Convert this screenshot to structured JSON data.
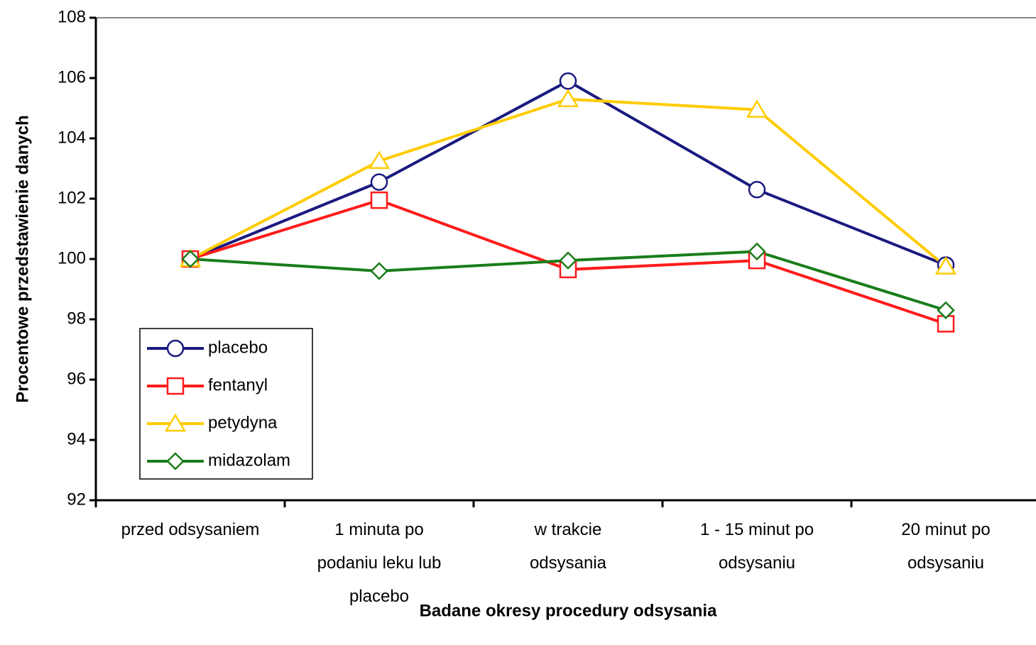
{
  "chart_data": {
    "type": "line",
    "x_label": "Badane okresy procedury odsysania",
    "y_label": "Procentowe przedstawienie danych",
    "categories": [
      "przed odsysaniem",
      "1 minuta po\npodaniu leku lub\nplacebo",
      "w  trakcie\nodsysania",
      "1 - 15 minut po\nodsysaniu",
      "20 minut po\nodsysaniu"
    ],
    "series": [
      {
        "name": "placebo",
        "color": "#1a1a80",
        "marker": "circle",
        "values": [
          100,
          102.55,
          105.9,
          102.3,
          99.8
        ]
      },
      {
        "name": "fentanyl",
        "color": "#ff1a1a",
        "marker": "square",
        "values": [
          100,
          101.95,
          99.65,
          99.95,
          97.85
        ]
      },
      {
        "name": "petydyna",
        "color": "#ffcc00",
        "marker": "triangle",
        "values": [
          100,
          103.25,
          105.3,
          104.95,
          99.75
        ]
      },
      {
        "name": "midazolam",
        "color": "#1a7d1a",
        "marker": "diamond",
        "values": [
          100,
          99.6,
          99.95,
          100.25,
          98.3
        ]
      }
    ],
    "ylim": [
      92,
      108
    ],
    "yticks": [
      92,
      94,
      96,
      98,
      100,
      102,
      104,
      106,
      108
    ],
    "grid": false,
    "legend": "lower left"
  }
}
